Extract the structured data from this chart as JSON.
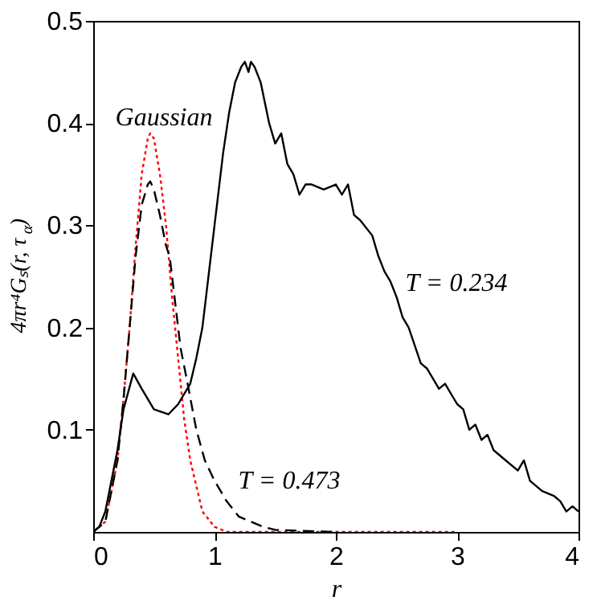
{
  "chart_data": {
    "type": "line",
    "xlabel": "r",
    "ylabel": "4πr⁴Gₛ(r, τ$_{α}$)",
    "xlim": [
      0,
      4
    ],
    "ylim": [
      0,
      0.5
    ],
    "xticks": [
      0,
      1,
      2,
      3,
      4
    ],
    "yticks": [
      0.1,
      0.2,
      0.3,
      0.4,
      0.5
    ],
    "grid": false,
    "legend": false,
    "marker": "none",
    "series": [
      {
        "name": "Gaussian",
        "color": "#ff0000",
        "line_style": "dotted",
        "x": [
          0,
          0.1,
          0.2,
          0.25,
          0.3,
          0.35,
          0.4,
          0.45,
          0.47,
          0.5,
          0.55,
          0.6,
          0.65,
          0.7,
          0.75,
          0.8,
          0.9,
          1.0,
          1.1,
          3.0
        ],
        "values": [
          0,
          0.01,
          0.07,
          0.13,
          0.2,
          0.28,
          0.35,
          0.385,
          0.39,
          0.385,
          0.35,
          0.3,
          0.23,
          0.17,
          0.11,
          0.07,
          0.02,
          0.005,
          0,
          0
        ]
      },
      {
        "name": "T = 0.473",
        "color": "#000000",
        "line_style": "dashed",
        "x": [
          0,
          0.1,
          0.2,
          0.25,
          0.3,
          0.35,
          0.4,
          0.45,
          0.47,
          0.5,
          0.55,
          0.6,
          0.63,
          0.68,
          0.72,
          0.77,
          0.85,
          0.92,
          1.0,
          1.1,
          1.2,
          1.3,
          1.4,
          1.5,
          2.0
        ],
        "values": [
          0,
          0.01,
          0.07,
          0.13,
          0.2,
          0.27,
          0.32,
          0.34,
          0.343,
          0.335,
          0.31,
          0.28,
          0.27,
          0.22,
          0.18,
          0.15,
          0.1,
          0.07,
          0.05,
          0.03,
          0.015,
          0.01,
          0.005,
          0.002,
          0
        ]
      },
      {
        "name": "T = 0.234",
        "color": "#000000",
        "line_style": "solid",
        "x": [
          0,
          0.05,
          0.1,
          0.2,
          0.25,
          0.33,
          0.4,
          0.5,
          0.62,
          0.7,
          0.8,
          0.85,
          0.9,
          0.95,
          1.0,
          1.07,
          1.12,
          1.17,
          1.22,
          1.25,
          1.28,
          1.3,
          1.33,
          1.38,
          1.45,
          1.5,
          1.55,
          1.6,
          1.65,
          1.7,
          1.75,
          1.8,
          1.9,
          2.0,
          2.05,
          2.1,
          2.15,
          2.2,
          2.3,
          2.35,
          2.4,
          2.45,
          2.5,
          2.55,
          2.6,
          2.7,
          2.75,
          2.8,
          2.85,
          2.9,
          3.0,
          3.05,
          3.1,
          3.15,
          3.2,
          3.25,
          3.3,
          3.4,
          3.5,
          3.55,
          3.6,
          3.7,
          3.8,
          3.85,
          3.9,
          3.95,
          4.0
        ],
        "values": [
          0,
          0.005,
          0.02,
          0.08,
          0.12,
          0.155,
          0.14,
          0.12,
          0.115,
          0.125,
          0.145,
          0.17,
          0.2,
          0.25,
          0.3,
          0.37,
          0.41,
          0.44,
          0.455,
          0.46,
          0.45,
          0.46,
          0.455,
          0.44,
          0.4,
          0.38,
          0.39,
          0.36,
          0.35,
          0.33,
          0.34,
          0.34,
          0.335,
          0.34,
          0.33,
          0.34,
          0.31,
          0.305,
          0.29,
          0.27,
          0.255,
          0.245,
          0.23,
          0.21,
          0.2,
          0.165,
          0.16,
          0.15,
          0.14,
          0.145,
          0.125,
          0.12,
          0.1,
          0.105,
          0.09,
          0.095,
          0.08,
          0.07,
          0.06,
          0.07,
          0.05,
          0.04,
          0.035,
          0.03,
          0.02,
          0.025,
          0.02
        ]
      }
    ]
  }
}
